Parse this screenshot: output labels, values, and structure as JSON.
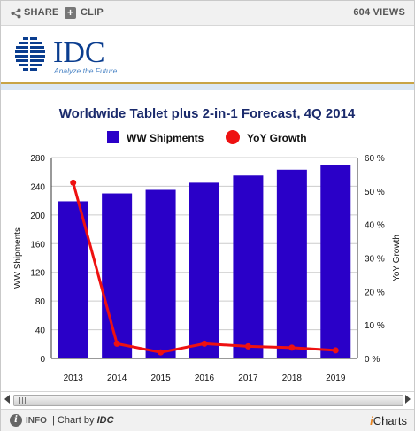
{
  "toolbar": {
    "share_label": "SHARE",
    "clip_label": "CLIP",
    "views_label": "604 VIEWS"
  },
  "header": {
    "logo_text": "IDC",
    "tagline": "Analyze the Future"
  },
  "footer": {
    "info_label": "INFO",
    "chart_by_prefix": "| Chart by",
    "chart_by_name": "IDC",
    "brand_i": "i",
    "brand_rest": "Charts"
  },
  "scrollbar": {
    "position": 1.0
  },
  "colors": {
    "bar": "#2a00c8",
    "line": "#ee1111",
    "title": "#1a2a6c",
    "logo_blue": "#0a3d8f",
    "tagline": "#4d86c6",
    "grid": "#cccccc"
  },
  "chart_data": {
    "type": "bar",
    "title": "Worldwide Tablet plus 2-in-1 Forecast, 4Q 2014",
    "categories": [
      "2013",
      "2014",
      "2015",
      "2016",
      "2017",
      "2018",
      "2019"
    ],
    "series": [
      {
        "name": "WW Shipments",
        "type": "bar",
        "axis": "left",
        "values": [
          219,
          230,
          235,
          245,
          255,
          263,
          270
        ]
      },
      {
        "name": "YoY Growth",
        "type": "line",
        "axis": "right",
        "values": [
          52.5,
          4.4,
          1.8,
          4.4,
          3.6,
          3.2,
          2.4
        ]
      }
    ],
    "ylabel": "WW Shipments",
    "y2label": "YoY Growth",
    "ylim": [
      0,
      280
    ],
    "yticks": [
      "0",
      "40",
      "80",
      "120",
      "160",
      "200",
      "240",
      "280"
    ],
    "y2lim": [
      0,
      60
    ],
    "y2ticks": [
      "0 %",
      "10 %",
      "20 %",
      "30 %",
      "40 %",
      "50 %",
      "60 %"
    ],
    "legend": "top-center",
    "grid": true
  }
}
